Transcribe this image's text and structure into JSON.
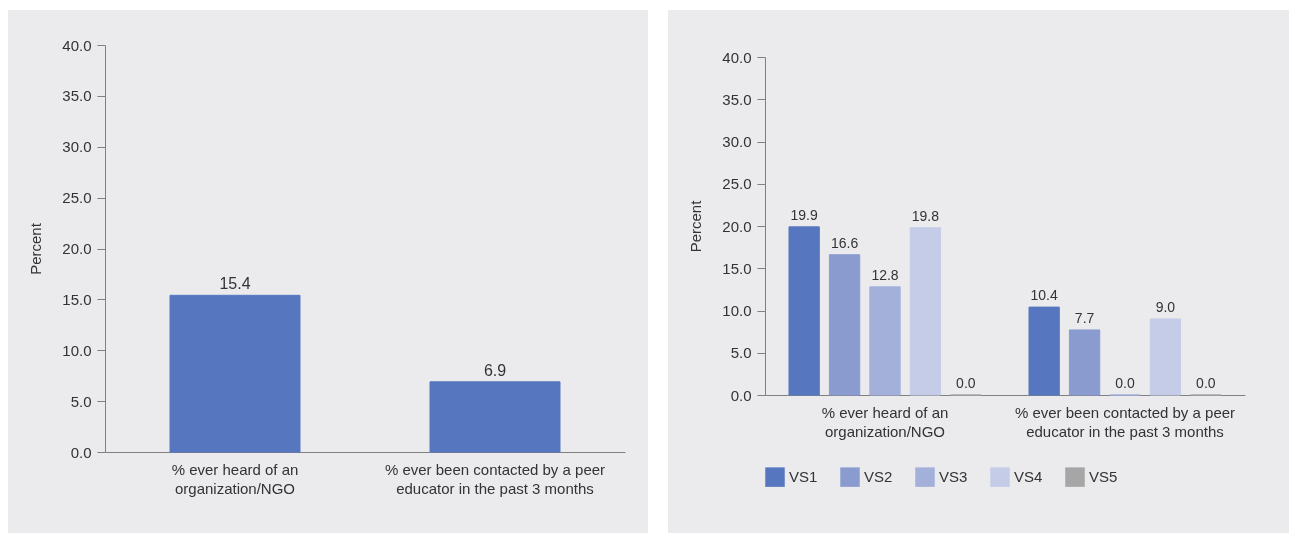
{
  "chart_data": [
    {
      "type": "bar",
      "ylabel": "Percent",
      "categories": [
        "% ever heard of an organization/NGO",
        "% ever been contacted by a peer educator in the past 3 months"
      ],
      "values": [
        15.4,
        6.9
      ],
      "color": "#5677bf",
      "value_labels": [
        "15.4",
        "6.9"
      ],
      "ylim": [
        0,
        40
      ],
      "yticks": [
        {
          "value": 0,
          "label": "0.0"
        },
        {
          "value": 5,
          "label": "5.0"
        },
        {
          "value": 10,
          "label": "10.0"
        },
        {
          "value": 15,
          "label": "15.0"
        },
        {
          "value": 20,
          "label": "20.0"
        },
        {
          "value": 25,
          "label": "25.0"
        },
        {
          "value": 30,
          "label": "30.0"
        },
        {
          "value": 35,
          "label": "35.0"
        },
        {
          "value": 40,
          "label": "40.0"
        }
      ]
    },
    {
      "type": "bar",
      "ylabel": "Percent",
      "categories": [
        "% ever heard of an organization/NGO",
        "% ever been contacted by a peer educator in the past 3 months"
      ],
      "series": [
        {
          "name": "VS1",
          "color": "#5677bf",
          "values": [
            19.9,
            10.4
          ],
          "value_labels": [
            "19.9",
            "10.4"
          ]
        },
        {
          "name": "VS2",
          "color": "#8a9bcf",
          "values": [
            16.6,
            7.7
          ],
          "value_labels": [
            "16.6",
            "7.7"
          ]
        },
        {
          "name": "VS3",
          "color": "#a3b0da",
          "values": [
            12.8,
            0
          ],
          "value_labels": [
            "12.8",
            "0.0"
          ]
        },
        {
          "name": "VS4",
          "color": "#c5cce8",
          "values": [
            19.8,
            9.0
          ],
          "value_labels": [
            "19.8",
            "9.0"
          ]
        },
        {
          "name": "VS5",
          "color": "#a6a6a6",
          "values": [
            0,
            0
          ],
          "value_labels": [
            "0.0",
            "0.0"
          ]
        }
      ],
      "ylim": [
        0,
        40
      ],
      "yticks": [
        {
          "value": 0,
          "label": "0.0"
        },
        {
          "value": 5,
          "label": "5.0"
        },
        {
          "value": 10,
          "label": "10.0"
        },
        {
          "value": 15,
          "label": "15.0"
        },
        {
          "value": 20,
          "label": "20.0"
        },
        {
          "value": 25,
          "label": "25.0"
        },
        {
          "value": 30,
          "label": "30.0"
        },
        {
          "value": 35,
          "label": "35.0"
        },
        {
          "value": 40,
          "label": "40.0"
        }
      ],
      "legend": "bottom"
    }
  ]
}
